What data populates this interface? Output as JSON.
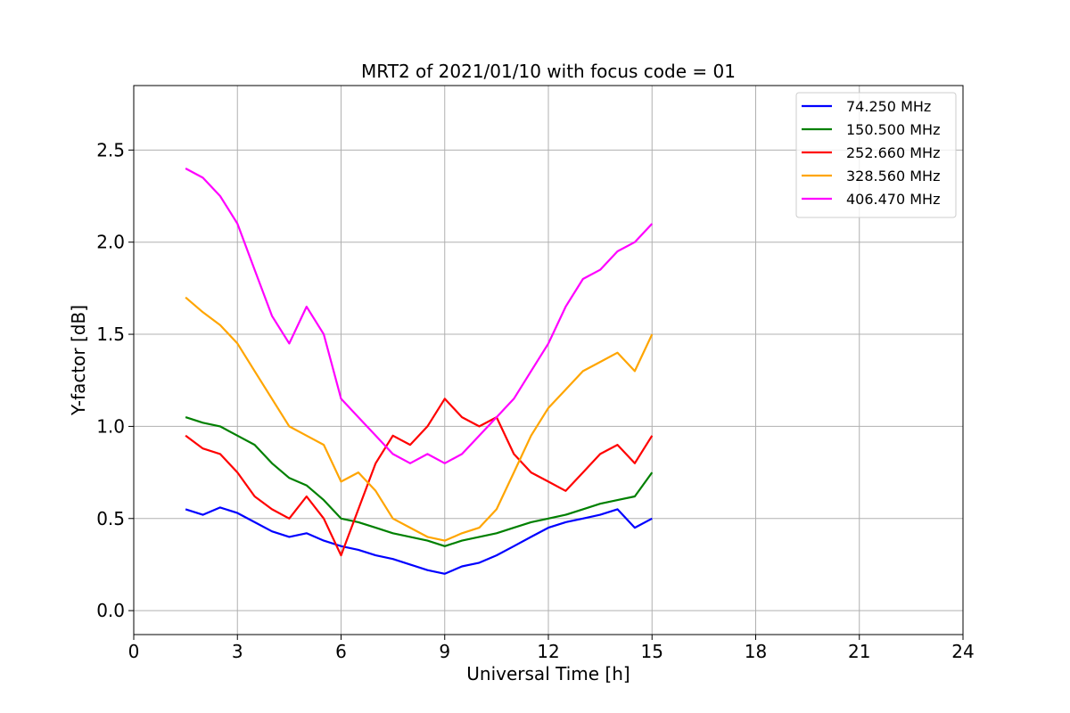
{
  "chart_data": {
    "type": "line",
    "title": "MRT2 of 2021/01/10 with focus code = 01",
    "xlabel": "Universal Time [h]",
    "ylabel": "Y-factor [dB]",
    "xlim": [
      0,
      24
    ],
    "ylim": [
      -0.13,
      2.85
    ],
    "xticks": [
      0,
      3,
      6,
      9,
      12,
      15,
      18,
      21,
      24
    ],
    "yticks": [
      0.0,
      0.5,
      1.0,
      1.5,
      2.0,
      2.5
    ],
    "xtick_labels": [
      "0",
      "3",
      "6",
      "9",
      "12",
      "15",
      "18",
      "21",
      "24"
    ],
    "ytick_labels": [
      "0.0",
      "0.5",
      "1.0",
      "1.5",
      "2.0",
      "2.5"
    ],
    "grid": true,
    "legend_position": "top-right",
    "series": [
      {
        "name": "74.250 MHz",
        "color": "#0000ff",
        "x": [
          1.5,
          2.0,
          2.5,
          3.0,
          3.5,
          4.0,
          4.5,
          5.0,
          5.5,
          6.0,
          6.5,
          7.0,
          7.5,
          8.0,
          8.5,
          9.0,
          9.5,
          10.0,
          10.5,
          11.0,
          11.5,
          12.0,
          12.5,
          13.0,
          13.5,
          14.0,
          14.5,
          15.0
        ],
        "y": [
          0.55,
          0.52,
          0.56,
          0.53,
          0.48,
          0.43,
          0.4,
          0.42,
          0.38,
          0.35,
          0.33,
          0.3,
          0.28,
          0.25,
          0.22,
          0.2,
          0.24,
          0.26,
          0.3,
          0.35,
          0.4,
          0.45,
          0.48,
          0.5,
          0.52,
          0.55,
          0.45,
          0.5
        ]
      },
      {
        "name": "150.500 MHz",
        "color": "#008000",
        "x": [
          1.5,
          2.0,
          2.5,
          3.0,
          3.5,
          4.0,
          4.5,
          5.0,
          5.5,
          6.0,
          6.5,
          7.0,
          7.5,
          8.0,
          8.5,
          9.0,
          9.5,
          10.0,
          10.5,
          11.0,
          11.5,
          12.0,
          12.5,
          13.0,
          13.5,
          14.0,
          14.5,
          15.0
        ],
        "y": [
          1.05,
          1.02,
          1.0,
          0.95,
          0.9,
          0.8,
          0.72,
          0.68,
          0.6,
          0.5,
          0.48,
          0.45,
          0.42,
          0.4,
          0.38,
          0.35,
          0.38,
          0.4,
          0.42,
          0.45,
          0.48,
          0.5,
          0.52,
          0.55,
          0.58,
          0.6,
          0.62,
          0.75
        ]
      },
      {
        "name": "252.660 MHz",
        "color": "#ff0000",
        "x": [
          1.5,
          2.0,
          2.5,
          3.0,
          3.5,
          4.0,
          4.5,
          5.0,
          5.5,
          6.0,
          6.5,
          7.0,
          7.5,
          8.0,
          8.5,
          9.0,
          9.5,
          10.0,
          10.5,
          11.0,
          11.5,
          12.0,
          12.5,
          13.0,
          13.5,
          14.0,
          14.5,
          15.0
        ],
        "y": [
          0.95,
          0.88,
          0.85,
          0.75,
          0.62,
          0.55,
          0.5,
          0.62,
          0.5,
          0.3,
          0.55,
          0.8,
          0.95,
          0.9,
          1.0,
          1.15,
          1.05,
          1.0,
          1.05,
          0.85,
          0.75,
          0.7,
          0.65,
          0.75,
          0.85,
          0.9,
          0.8,
          0.95
        ]
      },
      {
        "name": "328.560 MHz",
        "color": "#ffa500",
        "x": [
          1.5,
          2.0,
          2.5,
          3.0,
          3.5,
          4.0,
          4.5,
          5.0,
          5.5,
          6.0,
          6.5,
          7.0,
          7.5,
          8.0,
          8.5,
          9.0,
          9.5,
          10.0,
          10.5,
          11.0,
          11.5,
          12.0,
          12.5,
          13.0,
          13.5,
          14.0,
          14.5,
          15.0
        ],
        "y": [
          1.7,
          1.62,
          1.55,
          1.45,
          1.3,
          1.15,
          1.0,
          0.95,
          0.9,
          0.7,
          0.75,
          0.65,
          0.5,
          0.45,
          0.4,
          0.38,
          0.42,
          0.45,
          0.55,
          0.75,
          0.95,
          1.1,
          1.2,
          1.3,
          1.35,
          1.4,
          1.3,
          1.5
        ]
      },
      {
        "name": "406.470 MHz",
        "color": "#ff00ff",
        "x": [
          1.5,
          2.0,
          2.5,
          3.0,
          3.5,
          4.0,
          4.5,
          5.0,
          5.5,
          6.0,
          6.5,
          7.0,
          7.5,
          8.0,
          8.5,
          9.0,
          9.5,
          10.0,
          10.5,
          11.0,
          11.5,
          12.0,
          12.5,
          13.0,
          13.5,
          14.0,
          14.5,
          15.0
        ],
        "y": [
          2.4,
          2.35,
          2.25,
          2.1,
          1.85,
          1.6,
          1.45,
          1.65,
          1.5,
          1.15,
          1.05,
          0.95,
          0.85,
          0.8,
          0.85,
          0.8,
          0.85,
          0.95,
          1.05,
          1.15,
          1.3,
          1.45,
          1.65,
          1.8,
          1.85,
          1.95,
          2.0,
          2.1
        ]
      }
    ]
  }
}
